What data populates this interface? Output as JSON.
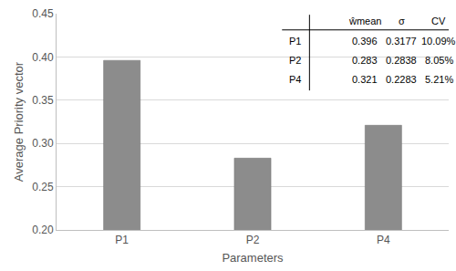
{
  "chart_data": {
    "type": "bar",
    "categories": [
      "P1",
      "P2",
      "P4"
    ],
    "values": [
      0.396,
      0.283,
      0.321
    ],
    "color": "#8c8c8c",
    "x_label": "Parameters",
    "y_label": "Average Priority vector",
    "ylim": [
      0.2,
      0.45
    ],
    "yticks": [
      {
        "value": 0.2,
        "label": "0.20"
      },
      {
        "value": 0.25,
        "label": "0.25"
      },
      {
        "value": 0.3,
        "label": "0.30"
      },
      {
        "value": 0.35,
        "label": "0.35"
      },
      {
        "value": 0.4,
        "label": "0.40"
      },
      {
        "value": 0.45,
        "label": "0.45"
      }
    ],
    "grid": true,
    "table": {
      "header": [
        "ŵmean",
        "σ",
        "CV"
      ],
      "rows": [
        [
          "P1",
          "0.396",
          "0.3177",
          "10.09%"
        ],
        [
          "P2",
          "0.283",
          "0.2838",
          "8.05%"
        ],
        [
          "P4",
          "0.321",
          "0.2283",
          "5.21%"
        ]
      ]
    }
  }
}
